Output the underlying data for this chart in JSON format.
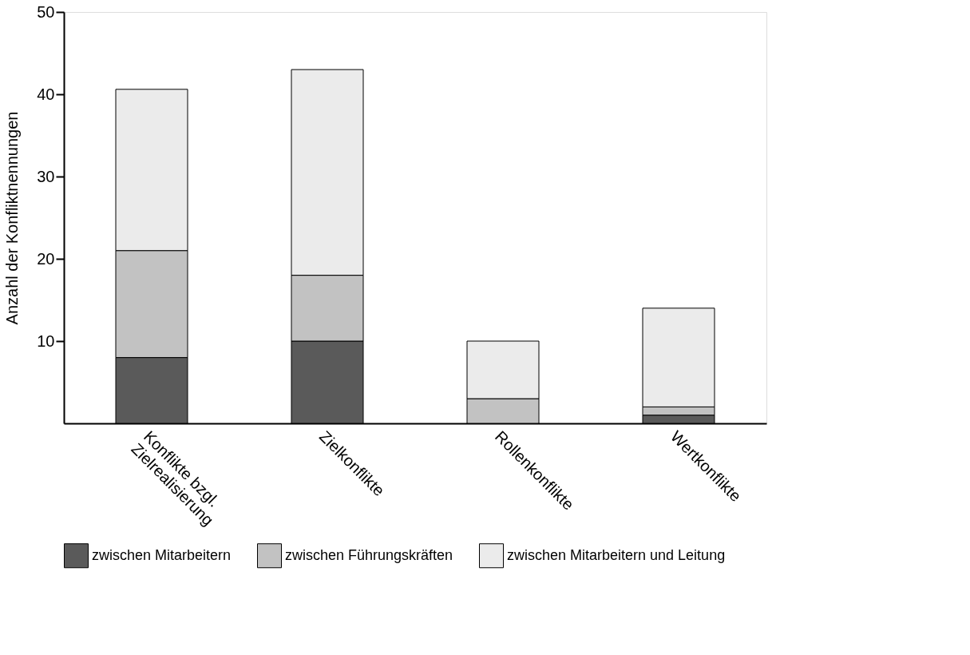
{
  "chart_data": {
    "type": "bar",
    "stacked": true,
    "ylabel": "Anzahl der Konfliktnennungen",
    "categories": [
      "Konflikte bzgl.\nZielrealisierung",
      "Zielkonflikte",
      "Rollenkonflikte",
      "Wertkonflikte"
    ],
    "series": [
      {
        "name": "zwischen Mitarbeitern",
        "color": "#5a5a5a",
        "values": [
          8,
          10,
          0,
          1
        ]
      },
      {
        "name": "zwischen Führungskräften",
        "color": "#c2c2c2",
        "values": [
          13,
          8,
          3,
          1
        ]
      },
      {
        "name": "zwischen Mitarbeitern und Leitung",
        "color": "#ebebeb",
        "values": [
          19.6,
          25,
          7,
          12
        ]
      }
    ],
    "ylim": [
      0,
      50
    ],
    "yticks": [
      10,
      20,
      30,
      40,
      50
    ],
    "grid": false,
    "legend": "bottom"
  }
}
